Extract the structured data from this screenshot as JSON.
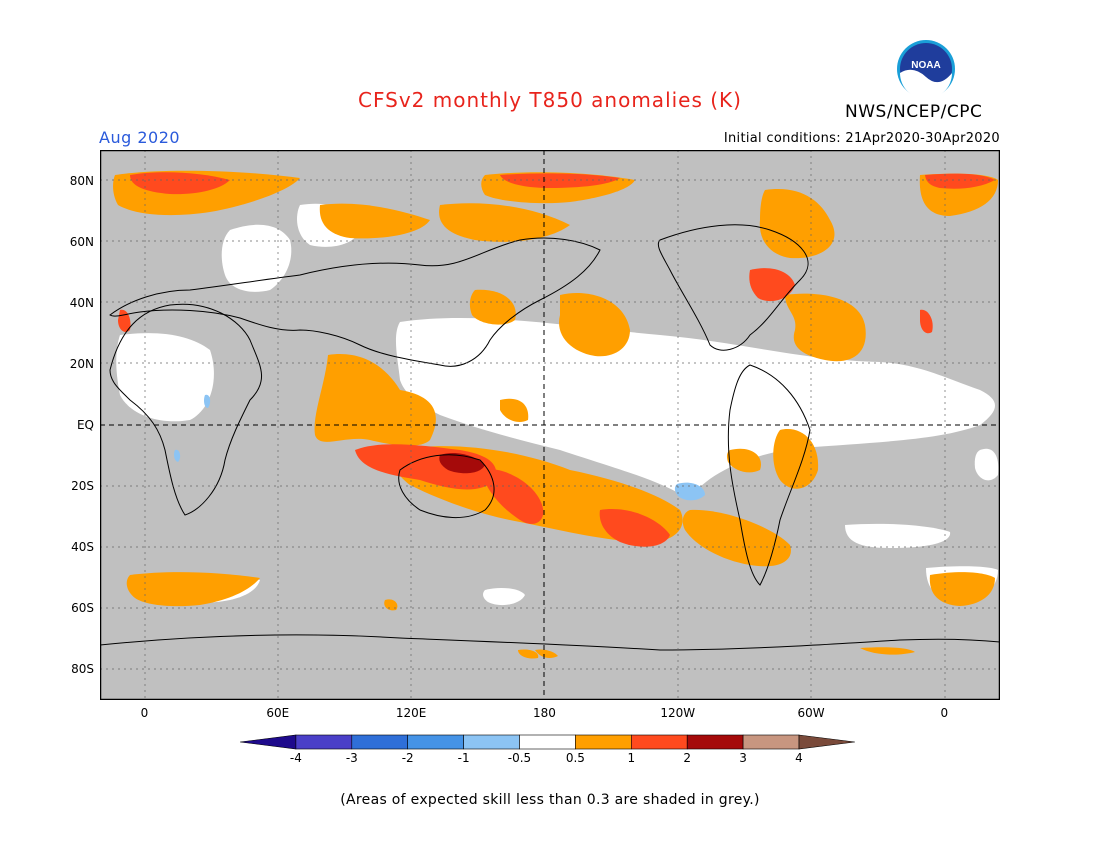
{
  "header": {
    "title": "CFSv2 monthly T850 anomalies (K)",
    "organization": "NWS/NCEP/CPC",
    "logo_text": "NOAA",
    "valid_month": "Aug 2020",
    "initial_conditions": "Initial conditions: 21Apr2020-30Apr2020"
  },
  "map": {
    "projection": "equirectangular",
    "center_longitude": "180",
    "lat_labels": [
      {
        "text": "80N",
        "lat": 80
      },
      {
        "text": "60N",
        "lat": 60
      },
      {
        "text": "40N",
        "lat": 40
      },
      {
        "text": "20N",
        "lat": 20
      },
      {
        "text": "EQ",
        "lat": 0
      },
      {
        "text": "20S",
        "lat": -20
      },
      {
        "text": "40S",
        "lat": -40
      },
      {
        "text": "60S",
        "lat": -60
      },
      {
        "text": "80S",
        "lat": -80
      }
    ],
    "lon_labels": [
      {
        "text": "0",
        "lon": 0
      },
      {
        "text": "60E",
        "lon": 60
      },
      {
        "text": "120E",
        "lon": 120
      },
      {
        "text": "180",
        "lon": 180
      },
      {
        "text": "120W",
        "lon": 240
      },
      {
        "text": "60W",
        "lon": 300
      },
      {
        "text": "0",
        "lon": 360
      }
    ],
    "low_skill_color": "#c0c0c0",
    "no_anomaly_color": "#ffffff"
  },
  "colorbar": {
    "tick_labels": [
      "-4",
      "-3",
      "-2",
      "-1",
      "-0.5",
      "0.5",
      "1",
      "2",
      "3",
      "4"
    ],
    "colors": [
      "#1e0a8c",
      "#4a3fc8",
      "#2f6fd8",
      "#4593e6",
      "#8cc4f4",
      "#ffffff",
      "#ff9f00",
      "#ff4a1e",
      "#a50a0a",
      "#c89680",
      "#7a4a3a"
    ]
  },
  "footnote": "(Areas of expected skill less than 0.3 are shaded in grey.)"
}
